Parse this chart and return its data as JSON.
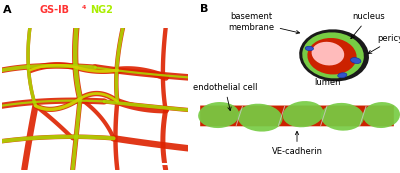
{
  "panel_a_label": "A",
  "panel_b_label": "B",
  "legend_gs_ib4": "GS-IB",
  "legend_gs_ib4_sub": "4",
  "legend_ng2": "NG2",
  "gs_ib4_color": "#ff3333",
  "ng2_color": "#aaee00",
  "annotation_basement": "basement\nmembrane",
  "annotation_nucleus": "nucleus",
  "annotation_pericyte": "pericyte",
  "annotation_lumen": "lumen",
  "annotation_endothelial": "endothelial cell",
  "annotation_vecadherin": "VE-cadherin",
  "bg_color": "#ffffff",
  "black_outline": "#111111",
  "green_cell": "#77cc44",
  "red_cell": "#cc2200",
  "pink_lumen": "#ffbbbb",
  "blue_nucleus": "#3355cc",
  "panel_a_bg": "#1a1a08",
  "font_size_label": 8,
  "font_size_annot": 6.0,
  "font_size_legend": 7.0
}
